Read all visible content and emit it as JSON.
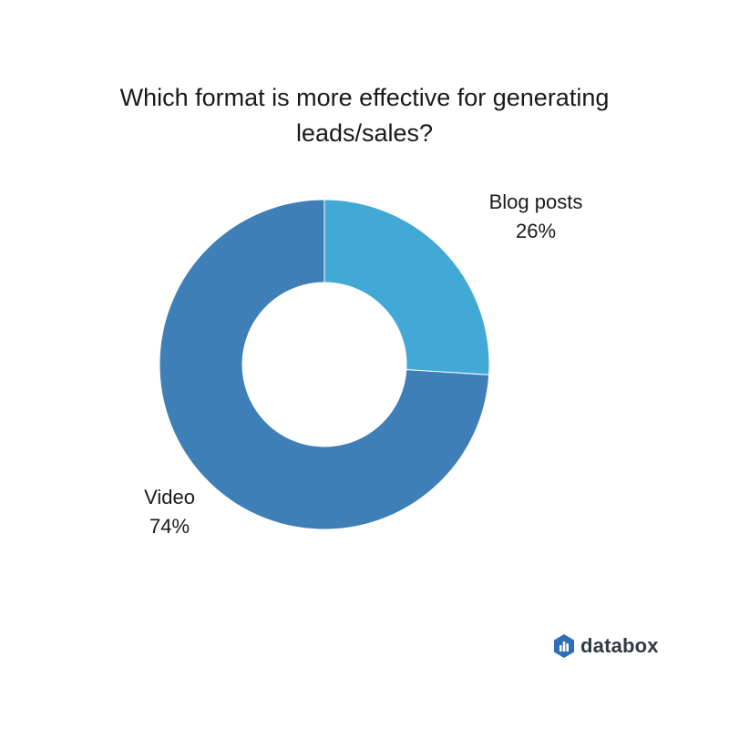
{
  "chart_data": {
    "type": "pie",
    "title": "Which format is more effective for generating leads/sales?",
    "donut": true,
    "slices": [
      {
        "label": "Blog posts",
        "value": 26,
        "value_label": "26%",
        "color": "#42a9d6"
      },
      {
        "label": "Video",
        "value": 74,
        "value_label": "74%",
        "color": "#3f7fb8"
      }
    ]
  },
  "brand": {
    "name": "databox",
    "icon": "databox-logo-icon",
    "colors": {
      "hexagon": "#2f6fb5",
      "bars": "#ffffff",
      "text": "#2f3a44"
    }
  }
}
